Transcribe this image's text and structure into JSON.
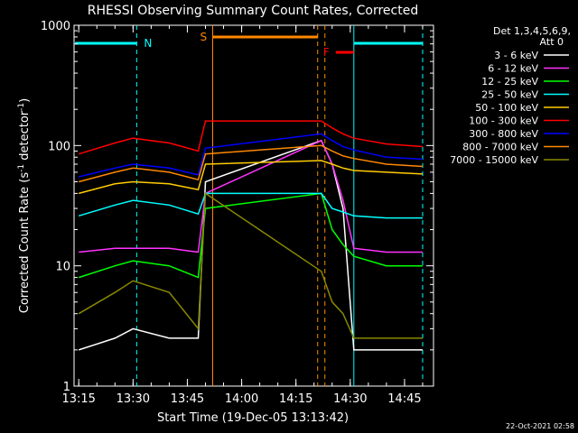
{
  "chart_data": {
    "type": "line",
    "title": "RHESSI Observing Summary Count Rates, Corrected",
    "xlabel": "Start Time (19-Dec-05 13:13:42)",
    "ylabel_main": "Corrected Count Rate (s",
    "ylabel_sup1": "-1",
    "ylabel_mid": " detector",
    "ylabel_sup2": "-1",
    "ylabel_end": ")",
    "yscale": "log",
    "xlim": [
      "13:13:42",
      "14:53:00"
    ],
    "ylim": [
      1,
      1000
    ],
    "x_ticks": [
      "13:15",
      "13:30",
      "13:45",
      "14:00",
      "14:15",
      "14:30",
      "14:45"
    ],
    "y_ticks": [
      "1",
      "10",
      "100",
      "1000"
    ],
    "legend": {
      "header1": "Det 1,3,4,5,6,9,",
      "header2": "Att 0",
      "position": "top-right",
      "entries": [
        {
          "label": "3 - 6 keV",
          "color": "#ffffff"
        },
        {
          "label": "6 - 12 keV",
          "color": "#ff33ff"
        },
        {
          "label": "12 - 25 keV",
          "color": "#00ff00"
        },
        {
          "label": "25 - 50 keV",
          "color": "#00ffff"
        },
        {
          "label": "50 - 100 keV",
          "color": "#ffcc00"
        },
        {
          "label": "100 - 300 keV",
          "color": "#ff0000"
        },
        {
          "label": "300 - 800 keV",
          "color": "#0000ff"
        },
        {
          "label": "800 - 7000 keV",
          "color": "#ff8800"
        },
        {
          "label": "7000 - 15000 keV",
          "color": "#888800"
        }
      ]
    },
    "flags": [
      {
        "label": "N",
        "color": "#00ffff",
        "start": "13:14",
        "end": "13:31",
        "segments": [
          [
            "13:14",
            "13:31"
          ],
          [
            "14:31",
            "14:50"
          ]
        ]
      },
      {
        "label": "S",
        "color": "#ff8800",
        "start": "13:52",
        "end": "14:21"
      },
      {
        "label": "F",
        "color": "#ff0000",
        "start": "14:26",
        "end": "14:31"
      }
    ],
    "series": [
      {
        "label_ref": 0,
        "color": "#ffffff",
        "x": [
          "13:15",
          "13:25",
          "13:30",
          "13:40",
          "13:48",
          "13:50",
          "14:22",
          "14:25",
          "14:28",
          "14:31",
          "14:40",
          "14:50"
        ],
        "y": [
          2,
          2.5,
          3,
          2.5,
          2.5,
          50,
          110,
          70,
          30,
          2,
          2,
          2
        ]
      },
      {
        "label_ref": 1,
        "color": "#ff33ff",
        "x": [
          "13:15",
          "13:25",
          "13:30",
          "13:40",
          "13:48",
          "13:50",
          "14:22",
          "14:25",
          "14:28",
          "14:31",
          "14:40",
          "14:50"
        ],
        "y": [
          13,
          14,
          14,
          14,
          13,
          40,
          110,
          70,
          35,
          14,
          13,
          13
        ]
      },
      {
        "label_ref": 2,
        "color": "#00ff00",
        "x": [
          "13:15",
          "13:25",
          "13:30",
          "13:40",
          "13:48",
          "13:50",
          "14:22",
          "14:25",
          "14:28",
          "14:31",
          "14:40",
          "14:50"
        ],
        "y": [
          8,
          10,
          11,
          10,
          8,
          30,
          40,
          20,
          15,
          12,
          10,
          10
        ]
      },
      {
        "label_ref": 3,
        "color": "#00ffff",
        "x": [
          "13:15",
          "13:25",
          "13:30",
          "13:40",
          "13:48",
          "13:50",
          "14:22",
          "14:25",
          "14:28",
          "14:31",
          "14:40",
          "14:50"
        ],
        "y": [
          26,
          32,
          35,
          32,
          27,
          40,
          40,
          30,
          28,
          26,
          25,
          25
        ]
      },
      {
        "label_ref": 4,
        "color": "#ffcc00",
        "x": [
          "13:15",
          "13:25",
          "13:30",
          "13:40",
          "13:48",
          "13:50",
          "14:22",
          "14:25",
          "14:28",
          "14:31",
          "14:40",
          "14:50"
        ],
        "y": [
          40,
          48,
          50,
          48,
          43,
          70,
          75,
          70,
          65,
          62,
          60,
          58
        ]
      },
      {
        "label_ref": 5,
        "color": "#ff0000",
        "x": [
          "13:15",
          "13:25",
          "13:30",
          "13:40",
          "13:48",
          "13:50",
          "14:22",
          "14:25",
          "14:28",
          "14:31",
          "14:40",
          "14:50"
        ],
        "y": [
          85,
          105,
          115,
          105,
          90,
          160,
          160,
          140,
          125,
          115,
          103,
          98
        ]
      },
      {
        "label_ref": 6,
        "color": "#0000ff",
        "x": [
          "13:15",
          "13:25",
          "13:30",
          "13:40",
          "13:48",
          "13:50",
          "14:22",
          "14:25",
          "14:28",
          "14:31",
          "14:40",
          "14:50"
        ],
        "y": [
          55,
          65,
          70,
          65,
          57,
          95,
          125,
          110,
          98,
          92,
          80,
          77
        ]
      },
      {
        "label_ref": 7,
        "color": "#ff8800",
        "x": [
          "13:15",
          "13:25",
          "13:30",
          "13:40",
          "13:48",
          "13:50",
          "14:22",
          "14:25",
          "14:28",
          "14:31",
          "14:40",
          "14:50"
        ],
        "y": [
          50,
          60,
          65,
          60,
          52,
          85,
          100,
          90,
          82,
          78,
          70,
          67
        ]
      },
      {
        "label_ref": 8,
        "color": "#888800",
        "x": [
          "13:15",
          "13:25",
          "13:30",
          "13:40",
          "13:48",
          "13:50",
          "14:22",
          "14:25",
          "14:28",
          "14:31",
          "14:40",
          "14:50"
        ],
        "y": [
          4,
          6,
          7.5,
          6,
          3,
          40,
          9,
          5,
          4,
          2.5,
          2.5,
          2.5
        ]
      }
    ]
  },
  "footer": {
    "timestamp": "22-Oct-2021 02:58"
  }
}
